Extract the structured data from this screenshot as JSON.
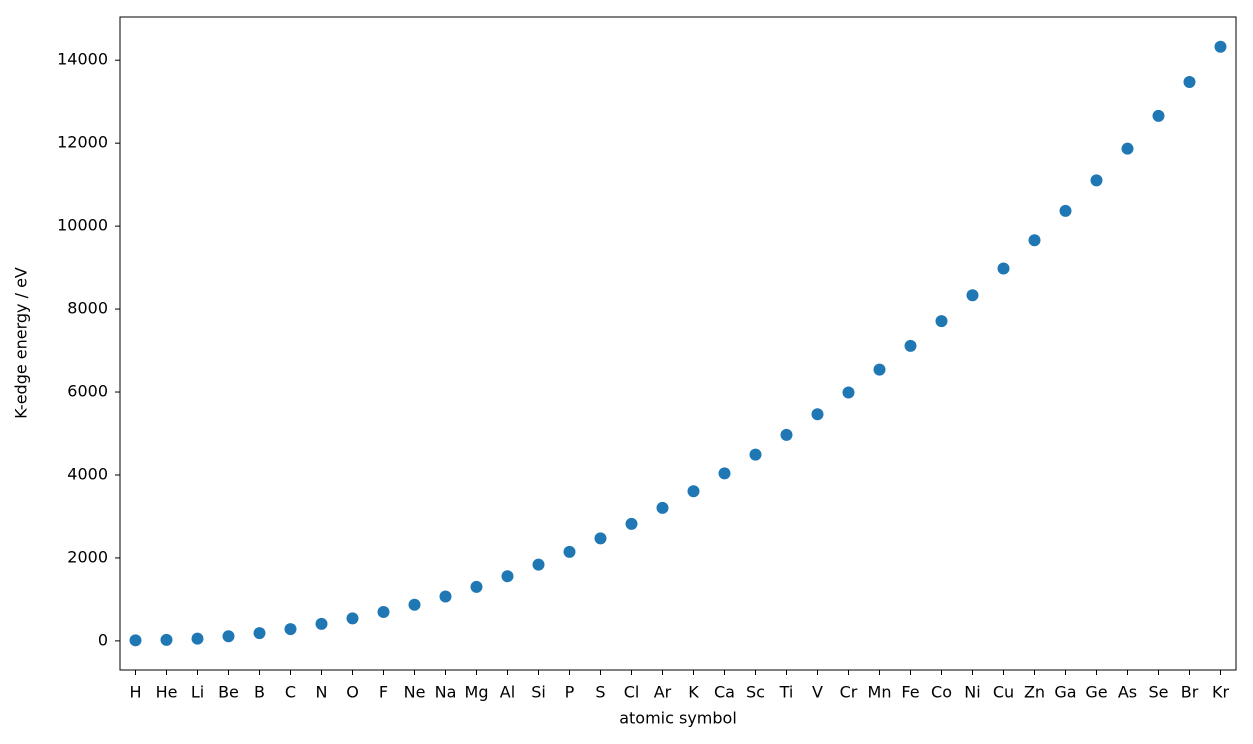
{
  "chart_data": {
    "type": "scatter",
    "xlabel": "atomic symbol",
    "ylabel": "K-edge energy / eV",
    "categories": [
      "H",
      "He",
      "Li",
      "Be",
      "B",
      "C",
      "N",
      "O",
      "F",
      "Ne",
      "Na",
      "Mg",
      "Al",
      "Si",
      "P",
      "S",
      "Cl",
      "Ar",
      "K",
      "Ca",
      "Sc",
      "Ti",
      "V",
      "Cr",
      "Mn",
      "Fe",
      "Co",
      "Ni",
      "Cu",
      "Zn",
      "Ga",
      "Ge",
      "As",
      "Se",
      "Br",
      "Kr"
    ],
    "values": [
      13.6,
      24.6,
      54.7,
      111.5,
      188,
      284.2,
      409.9,
      543.1,
      696.7,
      870.2,
      1070.8,
      1303,
      1559.6,
      1839,
      2145.5,
      2472,
      2822.4,
      3205.9,
      3608.4,
      4038.5,
      4492,
      4966,
      5465,
      5989,
      6539,
      7112,
      7709,
      8333,
      8979,
      9659,
      10367,
      11103,
      11867,
      12658,
      13474,
      14326
    ],
    "color": "#1f77b4",
    "ylim": [
      -702,
      15042
    ],
    "yticks": [
      0,
      2000,
      4000,
      6000,
      8000,
      10000,
      12000,
      14000
    ],
    "grid": false
  }
}
